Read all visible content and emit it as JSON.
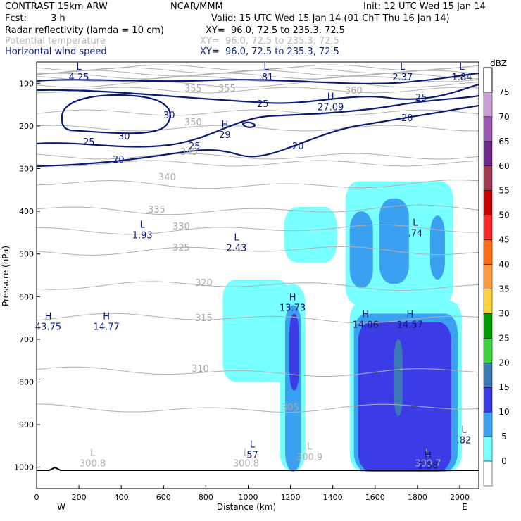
{
  "header": {
    "model": "CONTRAST 15km ARW",
    "org": "NCAR/MMM",
    "init": "Init: 12 UTC Wed 15 Jan 14",
    "fcst_label": "Fcst:",
    "fcst_value": "3 h",
    "valid": "Valid: 15 UTC Wed 15 Jan 14 (01 ChT Thu 16 Jan 14)",
    "fields": [
      {
        "name": "Radar reflectivity (lamda = 10 cm)",
        "xy": "XY=  96.0, 72.5 to 235.3, 72.5",
        "color": "#000000"
      },
      {
        "name": "Potential temperature",
        "xy": "XY=  96.0, 72.5 to 235.3, 72.5",
        "color": "#b8b8b8"
      },
      {
        "name": "Horizontal wind speed",
        "xy": "XY=  96.0, 72.5 to 235.3, 72.5",
        "color": "#102080"
      }
    ]
  },
  "chart_data": {
    "type": "heatmap",
    "xlabel": "Distance (km)",
    "ylabel": "Pressure (hPa)",
    "xlim": [
      0,
      2090
    ],
    "ylim": [
      1050,
      50
    ],
    "x_ticks": [
      0,
      200,
      400,
      600,
      800,
      1000,
      1200,
      1400,
      1600,
      1800,
      2000
    ],
    "y_ticks": [
      100,
      200,
      300,
      400,
      500,
      600,
      700,
      800,
      900,
      1000
    ],
    "x_end_labels": {
      "left": "W",
      "right": "E"
    },
    "colorbar": {
      "unit": "dBZ",
      "levels": [
        {
          "label": "75",
          "color": "#c8a0d8"
        },
        {
          "label": "70",
          "color": "#9c5ab4"
        },
        {
          "label": "65",
          "color": "#6c2a8c"
        },
        {
          "label": "60",
          "color": "#a03c50"
        },
        {
          "label": "55",
          "color": "#c80000"
        },
        {
          "label": "50",
          "color": "#ff2828"
        },
        {
          "label": "45",
          "color": "#ff6a14"
        },
        {
          "label": "40",
          "color": "#ff9a3c"
        },
        {
          "label": "35",
          "color": "#ffd23c"
        },
        {
          "label": "30",
          "color": "#009c00"
        },
        {
          "label": "25",
          "color": "#3cd23c"
        },
        {
          "label": "20",
          "color": "#3c78b4"
        },
        {
          "label": "15",
          "color": "#3c3ce6"
        },
        {
          "label": "10",
          "color": "#3ca0f0"
        },
        {
          "label": "5",
          "color": "#78ffff"
        },
        {
          "label": "0",
          "color": "#ffffff"
        }
      ]
    },
    "reflectivity_cells": [
      {
        "x": [
          880,
          1200
        ],
        "p": [
          560,
          800
        ],
        "dbz": 5
      },
      {
        "x": [
          1150,
          1270
        ],
        "p": [
          570,
          1010
        ],
        "dbz": 5
      },
      {
        "x": [
          1175,
          1250
        ],
        "p": [
          620,
          1010
        ],
        "dbz": 10
      },
      {
        "x": [
          1195,
          1240
        ],
        "p": [
          640,
          820
        ],
        "dbz": 15
      },
      {
        "x": [
          1480,
          2010
        ],
        "p": [
          610,
          1010
        ],
        "dbz": 5
      },
      {
        "x": [
          1500,
          1990
        ],
        "p": [
          640,
          1010
        ],
        "dbz": 10
      },
      {
        "x": [
          1520,
          1960
        ],
        "p": [
          660,
          1010
        ],
        "dbz": 15
      },
      {
        "x": [
          1690,
          1730
        ],
        "p": [
          700,
          880
        ],
        "dbz": 20
      },
      {
        "x": [
          1170,
          1420
        ],
        "p": [
          390,
          520
        ],
        "dbz": 5
      },
      {
        "x": [
          1460,
          1970
        ],
        "p": [
          330,
          620
        ],
        "dbz": 5
      },
      {
        "x": [
          1480,
          1590
        ],
        "p": [
          400,
          580
        ],
        "dbz": 10
      },
      {
        "x": [
          1620,
          1760
        ],
        "p": [
          370,
          570
        ],
        "dbz": 10
      },
      {
        "x": [
          1860,
          1930
        ],
        "p": [
          410,
          560
        ],
        "dbz": 10
      }
    ],
    "theta_labels": [
      "355",
      "350",
      "345",
      "340",
      "335",
      "330",
      "325",
      "320",
      "315",
      "310",
      "305",
      "360"
    ],
    "wind_labels": [
      "30",
      "25",
      "20"
    ],
    "extrema_labels": [
      {
        "type": "L",
        "value": "4.25",
        "field": "wind",
        "x": 200,
        "p": 80
      },
      {
        "type": "L",
        "value": ".81",
        "field": "wind",
        "x": 1085,
        "p": 80
      },
      {
        "type": "L",
        "value": "2.37",
        "field": "wind",
        "x": 1730,
        "p": 80
      },
      {
        "type": "L",
        "value": "1.84",
        "field": "wind",
        "x": 2010,
        "p": 80
      },
      {
        "type": "H",
        "value": "27.09",
        "field": "wind",
        "x": 1390,
        "p": 150
      },
      {
        "type": "H",
        "value": "29",
        "field": "wind",
        "x": 890,
        "p": 215
      },
      {
        "type": "L",
        "value": "1.93",
        "field": "wind",
        "x": 500,
        "p": 450
      },
      {
        "type": "L",
        "value": "2.43",
        "field": "wind",
        "x": 945,
        "p": 480
      },
      {
        "type": "L",
        "value": ".74",
        "field": "wind",
        "x": 1790,
        "p": 445
      },
      {
        "type": "H",
        "value": "13.73",
        "field": "wind",
        "x": 1210,
        "p": 620
      },
      {
        "type": "H",
        "value": "43.75",
        "field": "wind",
        "x": 55,
        "p": 665
      },
      {
        "type": "H",
        "value": "14.77",
        "field": "wind",
        "x": 330,
        "p": 665
      },
      {
        "type": "H",
        "value": "14.06",
        "field": "wind",
        "x": 1555,
        "p": 660
      },
      {
        "type": "H",
        "value": "14.57",
        "field": "wind",
        "x": 1765,
        "p": 660
      },
      {
        "type": "L",
        "value": "300.8",
        "field": "theta",
        "x": 265,
        "p": 985
      },
      {
        "type": "L",
        "value": "300.8",
        "field": "theta",
        "x": 990,
        "p": 985
      },
      {
        "type": "L",
        "value": "300.9",
        "field": "theta",
        "x": 1290,
        "p": 970
      },
      {
        "type": "L",
        "value": "300.7",
        "field": "theta",
        "x": 1850,
        "p": 985
      },
      {
        "type": "L",
        "value": "57",
        "field": "wind",
        "x": 1020,
        "p": 965
      },
      {
        "type": "H",
        "value": "2.58",
        "field": "wind",
        "x": 1850,
        "p": 990
      },
      {
        "type": "L",
        "value": ".82",
        "field": "wind",
        "x": 2020,
        "p": 930
      }
    ]
  }
}
